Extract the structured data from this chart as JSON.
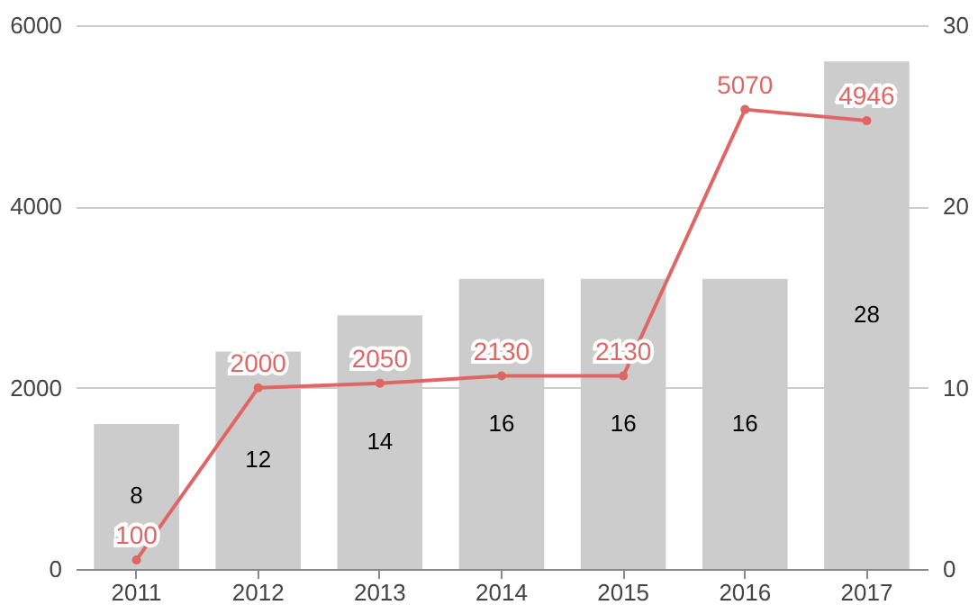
{
  "chart_data": {
    "type": "bar",
    "categories": [
      "2011",
      "2012",
      "2013",
      "2014",
      "2015",
      "2016",
      "2017"
    ],
    "series": [
      {
        "type": "bar",
        "axis": "y2",
        "color": "#cccccc",
        "values": [
          8,
          12,
          14,
          16,
          16,
          16,
          28
        ]
      },
      {
        "type": "line",
        "axis": "y",
        "color": "#e06666",
        "marker": "circle",
        "values": [
          100,
          2000,
          2050,
          2130,
          2130,
          5070,
          4946
        ]
      }
    ],
    "ylim": [
      0,
      6000
    ],
    "yticks": [
      0,
      2000,
      4000,
      6000
    ],
    "y2lim": [
      0,
      30
    ],
    "y2ticks": [
      0,
      10,
      20,
      30
    ],
    "grid": "y",
    "data_labels": true
  }
}
